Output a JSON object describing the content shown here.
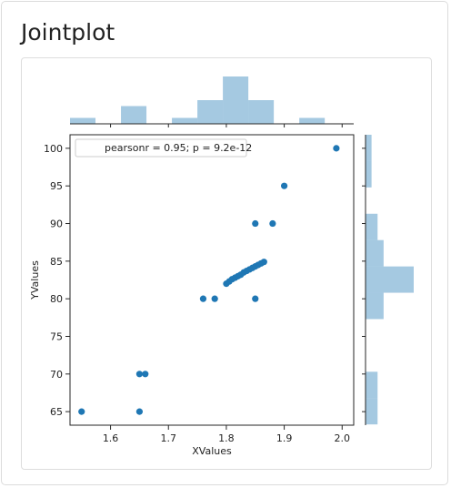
{
  "page": {
    "title": "Jointplot"
  },
  "chart_data": {
    "type": "scatter",
    "subtype": "jointplot",
    "xlabel": "XValues",
    "ylabel": "YValues",
    "xlim": [
      1.53,
      2.02
    ],
    "ylim": [
      63.2,
      101.8
    ],
    "xticks": [
      1.6,
      1.7,
      1.8,
      1.9,
      2.0
    ],
    "xtick_labels": [
      "1.6",
      "1.7",
      "1.8",
      "1.9",
      "2.0"
    ],
    "yticks": [
      65,
      70,
      75,
      80,
      85,
      90,
      95,
      100
    ],
    "ytick_labels": [
      "65",
      "70",
      "75",
      "80",
      "85",
      "90",
      "95",
      "100"
    ],
    "legend": {
      "text": "pearsonr = 0.95; p = 9.2e-12",
      "placement": "top-left"
    },
    "points": [
      {
        "x": 1.55,
        "y": 65
      },
      {
        "x": 1.65,
        "y": 65
      },
      {
        "x": 1.65,
        "y": 70
      },
      {
        "x": 1.66,
        "y": 70
      },
      {
        "x": 1.76,
        "y": 80
      },
      {
        "x": 1.78,
        "y": 80
      },
      {
        "x": 1.85,
        "y": 80
      },
      {
        "x": 1.8,
        "y": 82.0
      },
      {
        "x": 1.805,
        "y": 82.3
      },
      {
        "x": 1.81,
        "y": 82.6
      },
      {
        "x": 1.815,
        "y": 82.8
      },
      {
        "x": 1.82,
        "y": 83.0
      },
      {
        "x": 1.825,
        "y": 83.2
      },
      {
        "x": 1.83,
        "y": 83.5
      },
      {
        "x": 1.835,
        "y": 83.7
      },
      {
        "x": 1.84,
        "y": 83.9
      },
      {
        "x": 1.845,
        "y": 84.1
      },
      {
        "x": 1.85,
        "y": 84.3
      },
      {
        "x": 1.855,
        "y": 84.5
      },
      {
        "x": 1.86,
        "y": 84.7
      },
      {
        "x": 1.865,
        "y": 84.9
      },
      {
        "x": 1.85,
        "y": 90
      },
      {
        "x": 1.88,
        "y": 90
      },
      {
        "x": 1.9,
        "y": 95
      },
      {
        "x": 1.99,
        "y": 100
      }
    ],
    "marginal_x": {
      "bins": [
        {
          "start": 1.53,
          "end": 1.574,
          "count": 1
        },
        {
          "start": 1.574,
          "end": 1.618,
          "count": 0
        },
        {
          "start": 1.618,
          "end": 1.662,
          "count": 3
        },
        {
          "start": 1.662,
          "end": 1.706,
          "count": 0
        },
        {
          "start": 1.706,
          "end": 1.75,
          "count": 1
        },
        {
          "start": 1.75,
          "end": 1.794,
          "count": 4
        },
        {
          "start": 1.794,
          "end": 1.838,
          "count": 8
        },
        {
          "start": 1.838,
          "end": 1.882,
          "count": 4
        },
        {
          "start": 1.882,
          "end": 1.926,
          "count": 0
        },
        {
          "start": 1.926,
          "end": 1.97,
          "count": 1
        }
      ]
    },
    "marginal_y": {
      "bins": [
        {
          "start": 63.3,
          "end": 66.8,
          "count": 2
        },
        {
          "start": 66.8,
          "end": 70.3,
          "count": 2
        },
        {
          "start": 70.3,
          "end": 73.8,
          "count": 0
        },
        {
          "start": 73.8,
          "end": 77.3,
          "count": 0
        },
        {
          "start": 77.3,
          "end": 80.8,
          "count": 3
        },
        {
          "start": 80.8,
          "end": 84.3,
          "count": 8
        },
        {
          "start": 84.3,
          "end": 87.8,
          "count": 3
        },
        {
          "start": 87.8,
          "end": 91.3,
          "count": 2
        },
        {
          "start": 91.3,
          "end": 94.8,
          "count": 0
        },
        {
          "start": 94.8,
          "end": 98.3,
          "count": 1
        },
        {
          "start": 98.3,
          "end": 101.8,
          "count": 1
        }
      ]
    },
    "colors": {
      "points": "#1f77b4",
      "hist_fill": "#1f77b4",
      "hist_opacity": 0.4
    }
  }
}
